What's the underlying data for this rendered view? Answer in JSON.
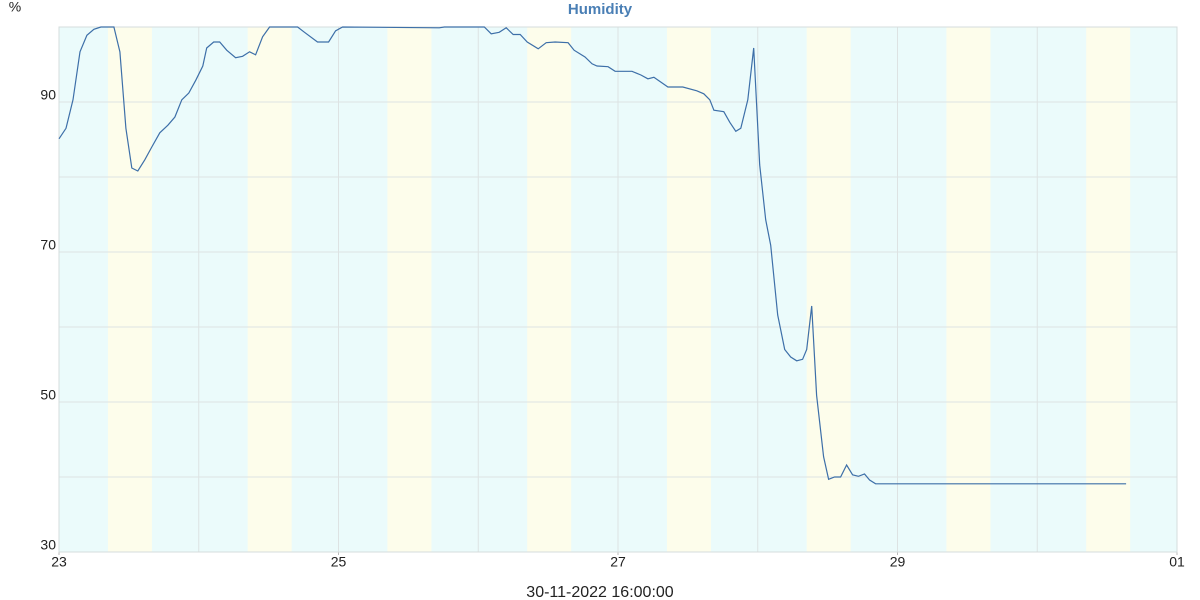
{
  "chart_data": {
    "type": "line",
    "title": "Humidity",
    "y_label": "%",
    "x_label": "30-11-2022 16:00:00",
    "color": "#3d6fa8",
    "grid": true,
    "xlim": [
      23,
      31
    ],
    "xticks": [
      23,
      25,
      27,
      29,
      {
        "value": 31,
        "label": "01"
      }
    ],
    "ylim": [
      30,
      100
    ],
    "yticks": [
      30,
      50,
      70,
      90
    ],
    "minor_yticks": [
      40,
      60,
      80,
      100
    ],
    "x": [
      23,
      23.05,
      23.1,
      23.15,
      23.2,
      23.25,
      23.3,
      23.393,
      23.436,
      23.479,
      23.521,
      23.564,
      23.614,
      23.664,
      23.721,
      23.779,
      23.829,
      23.879,
      23.929,
      23.979,
      24.029,
      24.057,
      24.107,
      24.15,
      24.2,
      24.264,
      24.314,
      24.364,
      24.407,
      24.457,
      24.507,
      24.707,
      24.757,
      24.85,
      24.929,
      24.979,
      25.029,
      25.721,
      25.757,
      26.043,
      26.093,
      26.15,
      26.2,
      26.25,
      26.3,
      26.35,
      26.429,
      26.486,
      26.55,
      26.643,
      26.686,
      26.764,
      26.814,
      26.85,
      26.929,
      26.979,
      27.1,
      27.164,
      27.214,
      27.257,
      27.357,
      27.464,
      27.564,
      27.614,
      27.657,
      27.686,
      27.757,
      27.8,
      27.843,
      27.879,
      27.929,
      27.971,
      28.014,
      28.057,
      28.093,
      28.143,
      28.193,
      28.236,
      28.279,
      28.321,
      28.35,
      28.386,
      28.421,
      28.471,
      28.507,
      28.55,
      28.593,
      28.636,
      28.679,
      28.721,
      28.764,
      28.8,
      28.843,
      30.636
    ],
    "values": [
      85.1,
      86.5,
      90.3,
      96.7,
      98.9,
      99.7,
      100,
      100,
      96.7,
      86.5,
      81.2,
      80.8,
      82.3,
      84,
      85.9,
      86.9,
      88,
      90.3,
      91.2,
      92.9,
      94.8,
      97.2,
      98,
      98,
      96.9,
      95.9,
      96.1,
      96.7,
      96.3,
      98.7,
      100,
      100,
      99.3,
      98,
      98,
      99.5,
      100,
      99.9,
      100,
      100,
      99.1,
      99.3,
      99.9,
      99,
      99,
      98,
      97.1,
      97.9,
      98,
      97.9,
      96.9,
      96,
      95.1,
      94.8,
      94.7,
      94.1,
      94.1,
      93.6,
      93.1,
      93.3,
      92,
      92,
      91.5,
      91.1,
      90.3,
      88.9,
      88.7,
      87.3,
      86.1,
      86.5,
      90.3,
      97.2,
      81.6,
      74.3,
      70.9,
      61.6,
      57,
      56,
      55.5,
      55.7,
      57,
      62.8,
      50.9,
      42.7,
      39.7,
      40,
      40,
      41.6,
      40.3,
      40.1,
      40.4,
      39.6,
      39.1,
      39.1
    ]
  }
}
